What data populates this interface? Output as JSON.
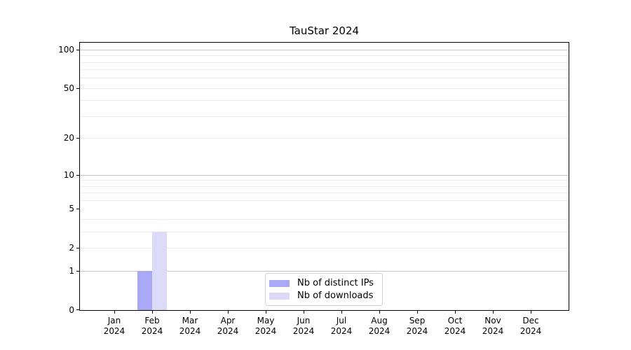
{
  "chart_data": {
    "type": "bar",
    "title": "TauStar 2024",
    "categories": [
      {
        "month": "Jan",
        "year": "2024"
      },
      {
        "month": "Feb",
        "year": "2024"
      },
      {
        "month": "Mar",
        "year": "2024"
      },
      {
        "month": "Apr",
        "year": "2024"
      },
      {
        "month": "May",
        "year": "2024"
      },
      {
        "month": "Jun",
        "year": "2024"
      },
      {
        "month": "Jul",
        "year": "2024"
      },
      {
        "month": "Aug",
        "year": "2024"
      },
      {
        "month": "Sep",
        "year": "2024"
      },
      {
        "month": "Oct",
        "year": "2024"
      },
      {
        "month": "Nov",
        "year": "2024"
      },
      {
        "month": "Dec",
        "year": "2024"
      }
    ],
    "series": [
      {
        "name": "Nb of distinct IPs",
        "color": "#a8a8f5",
        "values": [
          0,
          1,
          0,
          0,
          0,
          0,
          0,
          0,
          0,
          0,
          0,
          0
        ]
      },
      {
        "name": "Nb of downloads",
        "color": "#dbdbf8",
        "values": [
          0,
          3,
          0,
          0,
          0,
          0,
          0,
          0,
          0,
          0,
          0,
          0
        ]
      }
    ],
    "y_axis": {
      "scale": "log1p",
      "tick_labels": [
        0,
        1,
        2,
        5,
        10,
        20,
        50,
        100
      ],
      "major_gridlines": [
        1,
        10,
        100
      ],
      "minor_gridlines": [
        2,
        3,
        4,
        6,
        7,
        8,
        9,
        20,
        30,
        40,
        50,
        60,
        70,
        80,
        90
      ],
      "ylim": [
        0,
        112
      ]
    },
    "grid": {
      "major_color": "#c9c9c9",
      "minor_color": "#ececec"
    },
    "legend": {
      "position": "bottom-center"
    }
  }
}
